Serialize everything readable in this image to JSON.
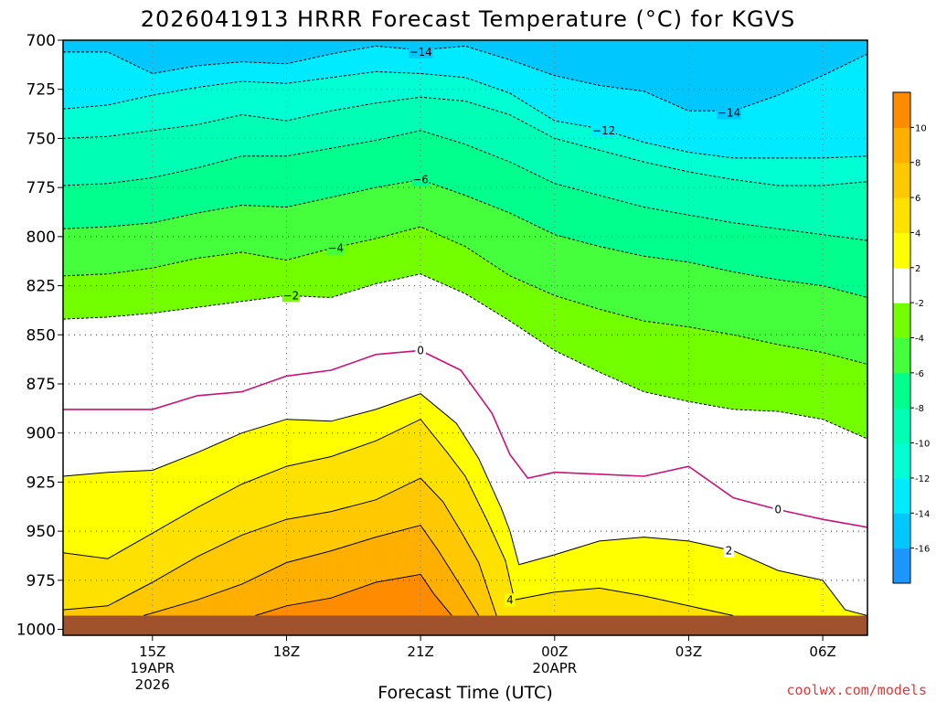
{
  "chart_data": {
    "type": "heatmap",
    "title": "2026041913 HRRR Forecast Temperature (°C) for KGVS",
    "xlabel": "Forecast Time (UTC)",
    "ylabel": "",
    "credit": "coolwx.com/models",
    "x_ticks": [
      {
        "label": "15Z",
        "sub1": "19APR",
        "sub2": "2026",
        "hour": 15
      },
      {
        "label": "18Z",
        "sub1": "",
        "sub2": "",
        "hour": 18
      },
      {
        "label": "21Z",
        "sub1": "",
        "sub2": "",
        "hour": 21
      },
      {
        "label": "00Z",
        "sub1": "20APR",
        "sub2": "",
        "hour": 24
      },
      {
        "label": "03Z",
        "sub1": "",
        "sub2": "",
        "hour": 27
      },
      {
        "label": "06Z",
        "sub1": "",
        "sub2": "",
        "hour": 30
      }
    ],
    "x_range_hours": [
      13,
      31
    ],
    "y_ticks": [
      "700",
      "725",
      "750",
      "775",
      "800",
      "825",
      "850",
      "875",
      "900",
      "925",
      "950",
      "975",
      "1000"
    ],
    "y_range_hpa": [
      700,
      1003
    ],
    "ground_hpa": 993,
    "grid": true,
    "colorbar": {
      "placement": "right",
      "levels": [
        -18,
        -16,
        -14,
        -12,
        -10,
        -8,
        -6,
        -4,
        -2,
        2,
        4,
        6,
        8,
        10,
        12
      ],
      "tick_labels": [
        "-16",
        "-14",
        "-12",
        "-10",
        "-8",
        "-6",
        "-4",
        "-2",
        "2",
        "4",
        "6",
        "8",
        "10"
      ],
      "colors": [
        "#1e96ff",
        "#00c8ff",
        "#00ebff",
        "#00ffd2",
        "#00ffb4",
        "#00ff8c",
        "#46ff3c",
        "#73ff00",
        "#ffffff",
        "#ffff00",
        "#ffe100",
        "#ffc800",
        "#ffaf00",
        "#ff8c00"
      ]
    },
    "isotherms": [
      {
        "value": -14,
        "label": "−14",
        "color": "#000000",
        "dash": true,
        "points": [
          [
            13,
            706
          ],
          [
            14,
            706
          ],
          [
            15,
            717
          ],
          [
            16,
            713
          ],
          [
            17,
            711
          ],
          [
            18,
            712
          ],
          [
            19,
            707
          ],
          [
            20,
            703
          ],
          [
            21,
            705
          ],
          [
            22,
            703
          ],
          [
            23,
            710
          ],
          [
            24,
            718
          ],
          [
            25,
            723
          ],
          [
            26,
            726
          ],
          [
            27,
            736
          ],
          [
            28,
            736
          ],
          [
            29,
            728
          ],
          [
            30,
            718
          ],
          [
            31,
            707
          ]
        ]
      },
      {
        "value": -12,
        "label": "−12",
        "color": "#000000",
        "dash": true,
        "points": [
          [
            13,
            735
          ],
          [
            14,
            733
          ],
          [
            15,
            728
          ],
          [
            16,
            724
          ],
          [
            17,
            721
          ],
          [
            18,
            722
          ],
          [
            19,
            719
          ],
          [
            20,
            716
          ],
          [
            21,
            717
          ],
          [
            22,
            719
          ],
          [
            23,
            727
          ],
          [
            24,
            741
          ],
          [
            25,
            745
          ],
          [
            26,
            752
          ],
          [
            27,
            757
          ],
          [
            28,
            760
          ],
          [
            29,
            760
          ],
          [
            30,
            760
          ],
          [
            31,
            759
          ]
        ]
      },
      {
        "value": -10,
        "label": "",
        "color": "#000000",
        "dash": true,
        "points": [
          [
            13,
            750
          ],
          [
            14,
            749
          ],
          [
            15,
            746
          ],
          [
            16,
            743
          ],
          [
            17,
            738
          ],
          [
            18,
            741
          ],
          [
            19,
            736
          ],
          [
            20,
            732
          ],
          [
            21,
            729
          ],
          [
            22,
            731
          ],
          [
            23,
            738
          ],
          [
            24,
            750
          ],
          [
            25,
            756
          ],
          [
            26,
            762
          ],
          [
            27,
            767
          ],
          [
            28,
            771
          ],
          [
            29,
            774
          ],
          [
            30,
            774
          ],
          [
            31,
            772
          ]
        ]
      },
      {
        "value": -8,
        "label": "",
        "color": "#000000",
        "dash": true,
        "points": [
          [
            13,
            774
          ],
          [
            14,
            773
          ],
          [
            15,
            770
          ],
          [
            16,
            765
          ],
          [
            17,
            759
          ],
          [
            18,
            759
          ],
          [
            19,
            755
          ],
          [
            20,
            751
          ],
          [
            21,
            746
          ],
          [
            22,
            753
          ],
          [
            23,
            762
          ],
          [
            24,
            773
          ],
          [
            25,
            779
          ],
          [
            26,
            785
          ],
          [
            27,
            789
          ],
          [
            28,
            793
          ],
          [
            29,
            796
          ],
          [
            30,
            799
          ],
          [
            31,
            802
          ]
        ]
      },
      {
        "value": -6,
        "label": "−6",
        "color": "#000000",
        "dash": true,
        "points": [
          [
            13,
            796
          ],
          [
            14,
            795
          ],
          [
            15,
            793
          ],
          [
            16,
            788
          ],
          [
            17,
            784
          ],
          [
            18,
            785
          ],
          [
            19,
            780
          ],
          [
            20,
            775
          ],
          [
            21,
            771
          ],
          [
            22,
            779
          ],
          [
            23,
            788
          ],
          [
            24,
            799
          ],
          [
            25,
            805
          ],
          [
            26,
            810
          ],
          [
            27,
            813
          ],
          [
            28,
            818
          ],
          [
            29,
            822
          ],
          [
            30,
            825
          ],
          [
            31,
            831
          ]
        ]
      },
      {
        "value": -4,
        "label": "−4",
        "color": "#000000",
        "dash": true,
        "points": [
          [
            13,
            820
          ],
          [
            14,
            819
          ],
          [
            15,
            816
          ],
          [
            16,
            811
          ],
          [
            17,
            808
          ],
          [
            18,
            812
          ],
          [
            19,
            806
          ],
          [
            20,
            801
          ],
          [
            21,
            795
          ],
          [
            22,
            805
          ],
          [
            23,
            820
          ],
          [
            24,
            830
          ],
          [
            25,
            837
          ],
          [
            26,
            843
          ],
          [
            27,
            846
          ],
          [
            28,
            850
          ],
          [
            29,
            855
          ],
          [
            30,
            859
          ],
          [
            31,
            865
          ]
        ]
      },
      {
        "value": -2,
        "label": "−2",
        "color": "#000000",
        "dash": true,
        "points": [
          [
            13,
            842
          ],
          [
            14,
            841
          ],
          [
            15,
            839
          ],
          [
            16,
            836
          ],
          [
            17,
            833
          ],
          [
            18,
            830
          ],
          [
            19,
            831
          ],
          [
            20,
            824
          ],
          [
            21,
            819
          ],
          [
            22,
            829
          ],
          [
            23,
            843
          ],
          [
            24,
            858
          ],
          [
            25,
            869
          ],
          [
            26,
            879
          ],
          [
            27,
            884
          ],
          [
            28,
            888
          ],
          [
            29,
            889
          ],
          [
            30,
            893
          ],
          [
            31,
            903
          ]
        ]
      },
      {
        "value": 0,
        "label": "0",
        "color": "#cc1177",
        "dash": false,
        "points": [
          [
            13,
            888
          ],
          [
            14,
            888
          ],
          [
            15,
            888
          ],
          [
            16,
            881
          ],
          [
            17,
            879
          ],
          [
            18,
            871
          ],
          [
            19,
            868
          ],
          [
            20,
            860
          ],
          [
            21,
            858
          ],
          [
            21.9,
            868
          ],
          [
            22.6,
            890
          ],
          [
            23,
            911
          ],
          [
            23.4,
            923
          ],
          [
            24,
            920
          ],
          [
            25,
            921
          ],
          [
            26,
            922
          ],
          [
            27,
            917
          ],
          [
            28,
            933
          ],
          [
            29,
            939
          ],
          [
            30,
            944
          ],
          [
            31,
            948
          ]
        ]
      },
      {
        "value": 2,
        "label": "2",
        "color": "#000000",
        "dash": false,
        "points": [
          [
            13,
            922
          ],
          [
            14,
            920
          ],
          [
            15,
            919
          ],
          [
            16,
            910
          ],
          [
            17,
            900
          ],
          [
            18,
            893
          ],
          [
            19,
            894
          ],
          [
            20,
            888
          ],
          [
            21,
            880
          ],
          [
            21.8,
            895
          ],
          [
            22.3,
            913
          ],
          [
            22.8,
            938
          ],
          [
            23,
            950
          ],
          [
            23.2,
            967
          ],
          [
            24,
            962
          ],
          [
            25,
            955
          ],
          [
            26,
            953
          ],
          [
            27,
            955
          ],
          [
            28,
            960
          ],
          [
            29,
            970
          ],
          [
            30,
            975
          ],
          [
            30.5,
            990
          ],
          [
            31,
            993
          ]
        ]
      },
      {
        "value": 4,
        "label": "4",
        "color": "#000000",
        "dash": false,
        "points": [
          [
            13,
            961
          ],
          [
            14,
            964
          ],
          [
            15,
            951
          ],
          [
            16,
            938
          ],
          [
            17,
            926
          ],
          [
            18,
            917
          ],
          [
            19,
            912
          ],
          [
            20,
            904
          ],
          [
            21,
            893
          ],
          [
            21.6,
            910
          ],
          [
            22,
            922
          ],
          [
            22.5,
            945
          ],
          [
            22.9,
            965
          ],
          [
            23.1,
            985
          ],
          [
            24,
            981
          ],
          [
            25,
            979
          ],
          [
            26,
            983
          ],
          [
            27,
            988
          ],
          [
            28,
            993
          ]
        ]
      },
      {
        "value": 6,
        "label": "",
        "color": "#000000",
        "dash": false,
        "points": [
          [
            13,
            990
          ],
          [
            14,
            988
          ],
          [
            15,
            976
          ],
          [
            16,
            963
          ],
          [
            17,
            952
          ],
          [
            18,
            944
          ],
          [
            19,
            940
          ],
          [
            20,
            934
          ],
          [
            21,
            923
          ],
          [
            21.5,
            935
          ],
          [
            21.9,
            950
          ],
          [
            22.3,
            966
          ],
          [
            22.7,
            993
          ]
        ]
      },
      {
        "value": 8,
        "label": "",
        "color": "#000000",
        "dash": false,
        "points": [
          [
            14.8,
            993
          ],
          [
            16,
            985
          ],
          [
            17,
            977
          ],
          [
            18,
            966
          ],
          [
            19,
            960
          ],
          [
            20,
            953
          ],
          [
            21,
            947
          ],
          [
            21.4,
            960
          ],
          [
            21.9,
            978
          ],
          [
            22.3,
            993
          ]
        ]
      },
      {
        "value": 10,
        "label": "",
        "color": "#000000",
        "dash": false,
        "points": [
          [
            17.3,
            993
          ],
          [
            18,
            988
          ],
          [
            19,
            984
          ],
          [
            20,
            976
          ],
          [
            21,
            972
          ],
          [
            21.3,
            982
          ],
          [
            21.7,
            993
          ]
        ]
      }
    ],
    "contour_label_positions": [
      {
        "value": -14,
        "x": 21,
        "y": 706
      },
      {
        "value": -14,
        "x": 27.9,
        "y": 737
      },
      {
        "value": -12,
        "x": 25.1,
        "y": 746
      },
      {
        "value": -6,
        "x": 21,
        "y": 771
      },
      {
        "value": -4,
        "x": 19.1,
        "y": 806
      },
      {
        "value": -2,
        "x": 18.1,
        "y": 830
      },
      {
        "value": 0,
        "x": 21,
        "y": 858
      },
      {
        "value": 0,
        "x": 29,
        "y": 939
      },
      {
        "value": 2,
        "x": 27.9,
        "y": 960
      },
      {
        "value": 4,
        "x": 23.0,
        "y": 985
      }
    ]
  }
}
